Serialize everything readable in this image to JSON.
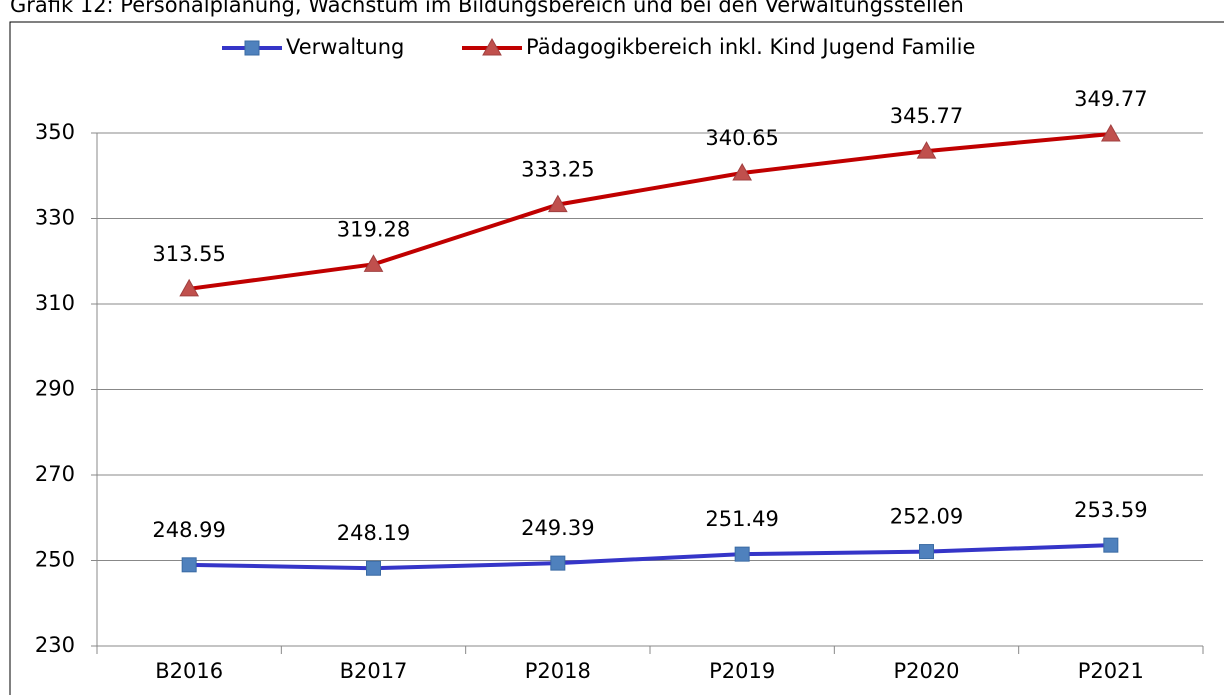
{
  "chart_data": {
    "type": "line",
    "title": "Grafik 12: Personalplanung, Wachstum im Bildungsbereich und bei den Verwaltungsstellen",
    "categories": [
      "B2016",
      "B2017",
      "P2018",
      "P2019",
      "P2020",
      "P2021"
    ],
    "series": [
      {
        "name": "Verwaltung",
        "color": "#3535c8",
        "marker_color": "#4f81bd",
        "marker": "square",
        "values": [
          248.99,
          248.19,
          249.39,
          251.49,
          252.09,
          253.59
        ]
      },
      {
        "name": "Pädagogikbereich inkl. Kind Jugend Familie",
        "color": "#c00000",
        "marker_color": "#c0504d",
        "marker": "triangle",
        "values": [
          313.55,
          319.28,
          333.25,
          340.65,
          345.77,
          349.77
        ]
      }
    ],
    "ylim": [
      230,
      350
    ],
    "yticks": [
      230,
      250,
      270,
      290,
      310,
      330,
      350
    ],
    "grid": true,
    "legend": "top"
  }
}
